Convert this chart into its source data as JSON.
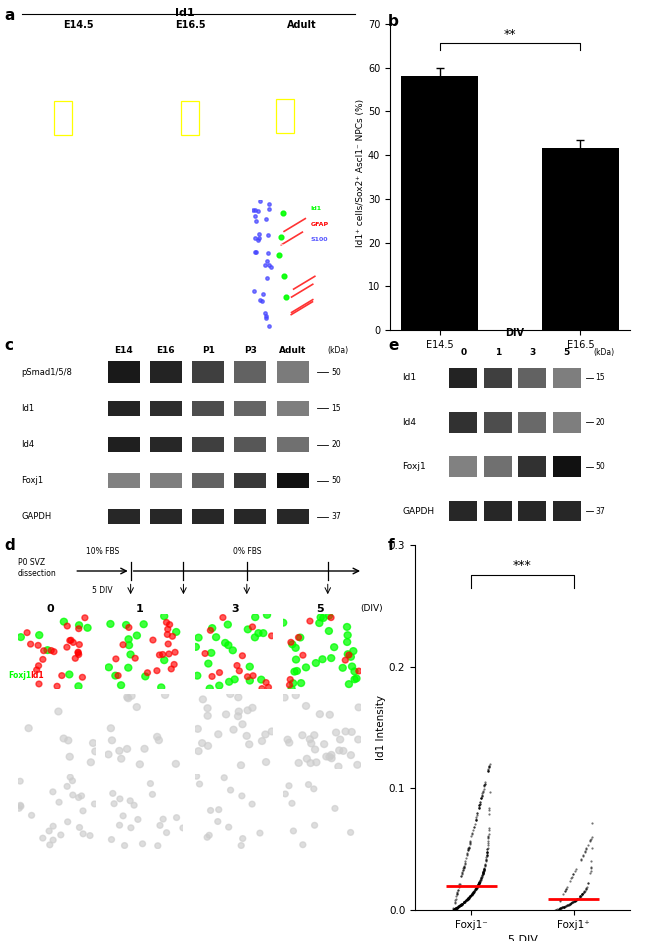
{
  "panel_b": {
    "categories": [
      "E14.5",
      "E16.5"
    ],
    "values": [
      58.0,
      41.5
    ],
    "errors": [
      1.8,
      2.0
    ],
    "ylabel": "Id1⁺ cells/Sox2⁺ Ascl1⁻ NPCs (%)",
    "yticks": [
      0,
      10,
      20,
      30,
      40,
      50,
      60,
      70
    ],
    "ylim": [
      0,
      72
    ],
    "bar_color": "#000000",
    "sig_text": "**"
  },
  "panel_c": {
    "col_labels": [
      "E14",
      "E16",
      "P1",
      "P3",
      "Adult"
    ],
    "row_labels": [
      "pSmad1/5/8",
      "Id1",
      "Id4",
      "Foxj1",
      "GAPDH"
    ],
    "kda_labels": [
      "50",
      "15",
      "20",
      "50",
      "37"
    ],
    "band_intensities": {
      "pSmad1/5/8": [
        0.82,
        0.75,
        0.55,
        0.3,
        0.12
      ],
      "Id1": [
        0.75,
        0.68,
        0.45,
        0.28,
        0.1
      ],
      "Id4": [
        0.78,
        0.72,
        0.55,
        0.38,
        0.2
      ],
      "Foxj1": [
        0.08,
        0.1,
        0.3,
        0.6,
        0.88
      ],
      "GAPDH": [
        0.72,
        0.72,
        0.72,
        0.72,
        0.72
      ]
    }
  },
  "panel_e": {
    "col_labels": [
      "0",
      "1",
      "3",
      "5"
    ],
    "row_labels": [
      "Id1",
      "Id4",
      "Foxj1",
      "GAPDH"
    ],
    "kda_labels": [
      "15",
      "20",
      "50",
      "37"
    ],
    "band_intensities": {
      "Id1": [
        0.75,
        0.55,
        0.3,
        0.1
      ],
      "Id4": [
        0.65,
        0.45,
        0.25,
        0.1
      ],
      "Foxj1": [
        0.08,
        0.2,
        0.65,
        0.88
      ],
      "GAPDH": [
        0.72,
        0.72,
        0.72,
        0.72
      ]
    }
  },
  "panel_f": {
    "categories": [
      "Foxj1⁻",
      "Foxj1⁺"
    ],
    "xlabel": "5 DIV",
    "ylabel": "Id1 Intensity",
    "ylim": [
      0,
      0.3
    ],
    "yticks": [
      0.0,
      0.1,
      0.2,
      0.3
    ],
    "sig_text": "***",
    "mean_color": "#ff0000"
  },
  "bg_color": "#ffffff"
}
